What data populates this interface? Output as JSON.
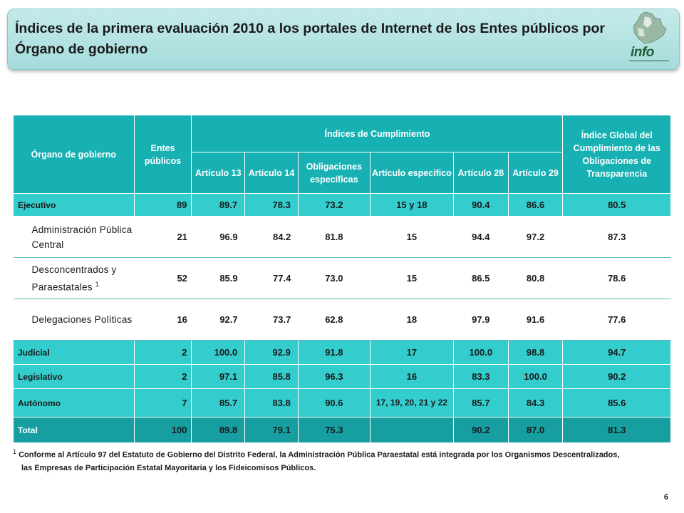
{
  "header": {
    "title": "Índices de la primera evaluación 2010 a los portales de Internet de los Entes públicos por Órgano de gobierno",
    "logo_text": "info"
  },
  "table": {
    "headers": {
      "organo": "Órgano de gobierno",
      "entes": "Entes públicos",
      "indices_group": "Índices de Cumplimiento",
      "global": "Índice Global del Cumplimiento de las Obligaciones de Transparencia",
      "sub": [
        "Artículo 13",
        "Artículo 14",
        "Obligaciones específicas",
        "Artículo específico",
        "Artículo 28",
        "Artículo 29"
      ]
    },
    "rows": [
      {
        "kind": "main",
        "name": "Ejecutivo",
        "entes": "89",
        "a13": "89.7",
        "a14": "78.3",
        "oblig": "73.2",
        "art": "15 y 18",
        "a28": "90.4",
        "a29": "86.6",
        "global": "80.5"
      },
      {
        "kind": "sub",
        "name": "Administración Pública Central",
        "entes": "21",
        "a13": "96.9",
        "a14": "84.2",
        "oblig": "81.8",
        "art": "15",
        "a28": "94.4",
        "a29": "97.2",
        "global": "87.3"
      },
      {
        "kind": "sub",
        "name": "Desconcentrados y Paraestatales",
        "sup": "1",
        "entes": "52",
        "a13": "85.9",
        "a14": "77.4",
        "oblig": "73.0",
        "art": "15",
        "a28": "86.5",
        "a29": "80.8",
        "global": "78.6"
      },
      {
        "kind": "sub",
        "name": "Delegaciones Políticas",
        "entes": "16",
        "a13": "92.7",
        "a14": "73.7",
        "oblig": "62.8",
        "art": "18",
        "a28": "97.9",
        "a29": "91.6",
        "global": "77.6"
      },
      {
        "kind": "main",
        "name": "Judicial",
        "entes": "2",
        "a13": "100.0",
        "a14": "92.9",
        "oblig": "91.8",
        "art": "17",
        "a28": "100.0",
        "a29": "98.8",
        "global": "94.7"
      },
      {
        "kind": "main",
        "name": "Legislativo",
        "entes": "2",
        "a13": "97.1",
        "a14": "85.8",
        "oblig": "96.3",
        "art": "16",
        "a28": "83.3",
        "a29": "100.0",
        "global": "90.2"
      },
      {
        "kind": "main",
        "name": "Autónomo",
        "entes": "7",
        "a13": "85.7",
        "a14": "83.8",
        "oblig": "90.6",
        "art": "17, 19, 20, 21 y 22",
        "a28": "85.7",
        "a29": "84.3",
        "global": "85.6"
      },
      {
        "kind": "total",
        "name": "Total",
        "entes": "100",
        "a13": "89.8",
        "a14": "79.1",
        "oblig": "75.3",
        "art": "",
        "a28": "90.2",
        "a29": "87.0",
        "global": "81.3"
      }
    ]
  },
  "footnote": {
    "marker": "1",
    "line1": "Conforme al Artículo 97 del Estatuto de Gobierno del Distrito Federal, la Administración Pública Paraestatal está integrada por los Organismos Descentralizados,",
    "line2": "las Empresas de Participación Estatal Mayoritaria y los Fideicomisos Públicos."
  },
  "page_number": "6",
  "colors": {
    "header_teal": "#17b1b4",
    "row_teal": "#33cdcd",
    "total_teal": "#169ea0",
    "title_box": "#b5e3e3",
    "logo_green": "#1e5e34"
  }
}
